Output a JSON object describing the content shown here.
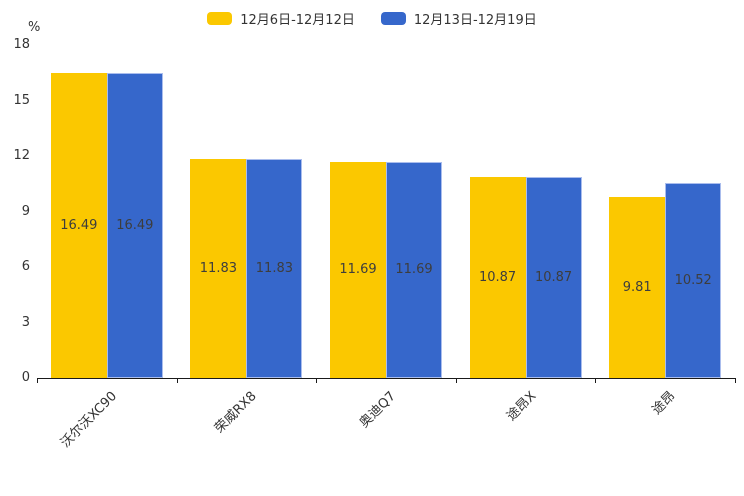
{
  "legend": {
    "items": [
      {
        "label": "12月6日-12月12日",
        "color": "#FBC800"
      },
      {
        "label": "12月13日-12月19日",
        "color": "#3667CB"
      }
    ]
  },
  "y_axis": {
    "unit_label": "%",
    "tick_labels": [
      "0",
      "3",
      "6",
      "9",
      "12",
      "15",
      "18"
    ]
  },
  "chart_data": {
    "type": "bar",
    "categories": [
      "沃尔沃XC90",
      "荣威RX8",
      "奥迪Q7",
      "途昂X",
      "途昂"
    ],
    "series": [
      {
        "name": "12月6日-12月12日",
        "color": "#FBC800",
        "values": [
          16.49,
          11.83,
          11.69,
          10.87,
          9.81
        ]
      },
      {
        "name": "12月13日-12月19日",
        "color": "#3667CB",
        "values": [
          16.49,
          11.83,
          11.69,
          10.87,
          10.52
        ]
      }
    ],
    "title": "",
    "xlabel": "",
    "ylabel": "%",
    "ylim": [
      0,
      18
    ],
    "yticks": [
      0,
      3,
      6,
      9,
      12,
      15,
      18
    ],
    "grid": false,
    "legend_position": "top",
    "value_labels": true,
    "value_label_position": "inside-middle",
    "x_tick_label_rotation_deg": 45
  }
}
